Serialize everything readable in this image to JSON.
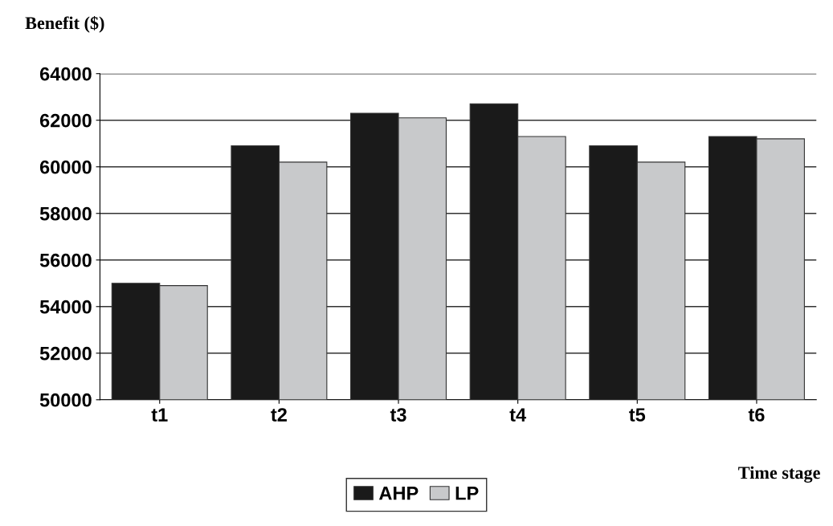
{
  "chart_data": {
    "type": "bar",
    "ylabel": "Benefit ($)",
    "xlabel": "Time stage",
    "categories": [
      "t1",
      "t2",
      "t3",
      "t4",
      "t5",
      "t6"
    ],
    "series": [
      {
        "name": "AHP",
        "color": "#1a1a1a",
        "values": [
          55000,
          60900,
          62300,
          62700,
          60900,
          61300
        ]
      },
      {
        "name": "LP",
        "color": "#c8c9cb",
        "values": [
          54900,
          60200,
          62100,
          61300,
          60200,
          61200
        ]
      }
    ],
    "ylim": [
      50000,
      64000
    ],
    "yticks": [
      50000,
      52000,
      54000,
      56000,
      58000,
      60000,
      62000,
      64000
    ],
    "grid": "y",
    "legend": "bottom"
  }
}
